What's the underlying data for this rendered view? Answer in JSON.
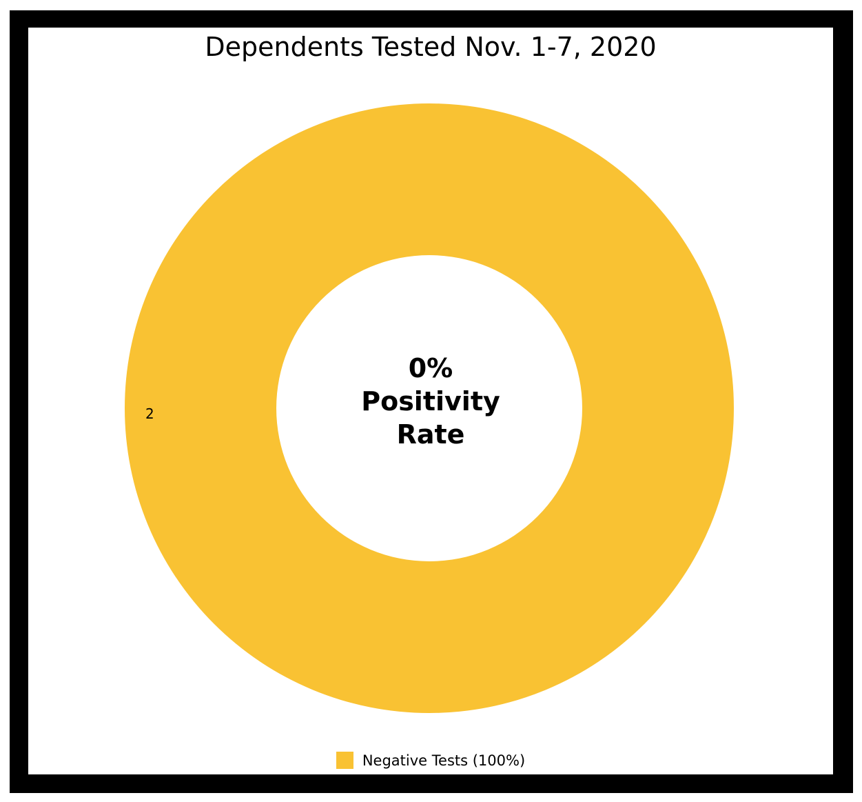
{
  "chart_data": {
    "type": "pie",
    "title": "Dependents Tested Nov. 1-7, 2020",
    "donut": true,
    "center_text": [
      "0%",
      "Positivity",
      "Rate"
    ],
    "slices": [
      {
        "label": "Negative Tests (100%)",
        "value": 2,
        "value_label": "2",
        "percent": 100,
        "color": "#F9C233"
      }
    ],
    "legend_placement": "bottom-center"
  },
  "colors": {
    "frame": "#000000",
    "background": "#ffffff"
  }
}
